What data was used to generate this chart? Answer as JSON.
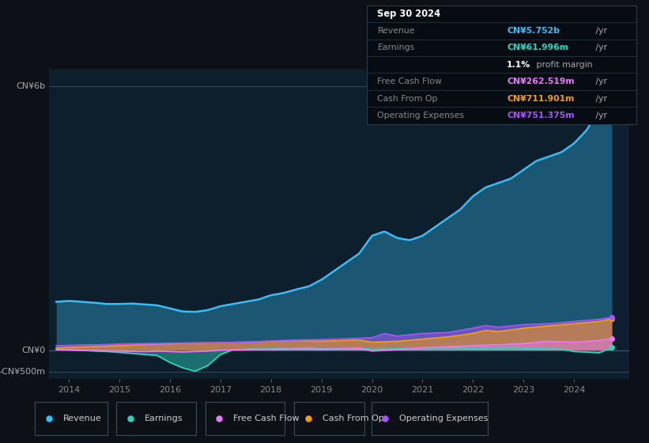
{
  "bg_color": "#0d1117",
  "chart_bg": "#0d1f2d",
  "colors": {
    "revenue": "#38bdf8",
    "earnings": "#2dd4bf",
    "free_cash_flow": "#e879f9",
    "cash_from_op": "#f59e0b",
    "operating_expenses": "#a855f7"
  },
  "ylabel_top": "CN¥6b",
  "ylabel_zero": "CN¥0",
  "ylabel_neg": "-CN¥500m",
  "xtick_labels": [
    "2014",
    "2015",
    "2016",
    "2017",
    "2018",
    "2019",
    "2020",
    "2021",
    "2022",
    "2023",
    "2024"
  ],
  "xtick_positions": [
    2014,
    2015,
    2016,
    2017,
    2018,
    2019,
    2020,
    2021,
    2022,
    2023,
    2024
  ],
  "xlim": [
    2013.6,
    2025.1
  ],
  "ylim": [
    -650,
    6400
  ],
  "y_zero": 0,
  "y_top": 6000,
  "y_neg": -500,
  "legend": [
    {
      "label": "Revenue",
      "color": "#38bdf8"
    },
    {
      "label": "Earnings",
      "color": "#2dd4bf"
    },
    {
      "label": "Free Cash Flow",
      "color": "#e879f9"
    },
    {
      "label": "Cash From Op",
      "color": "#f59e0b"
    },
    {
      "label": "Operating Expenses",
      "color": "#a855f7"
    }
  ]
}
